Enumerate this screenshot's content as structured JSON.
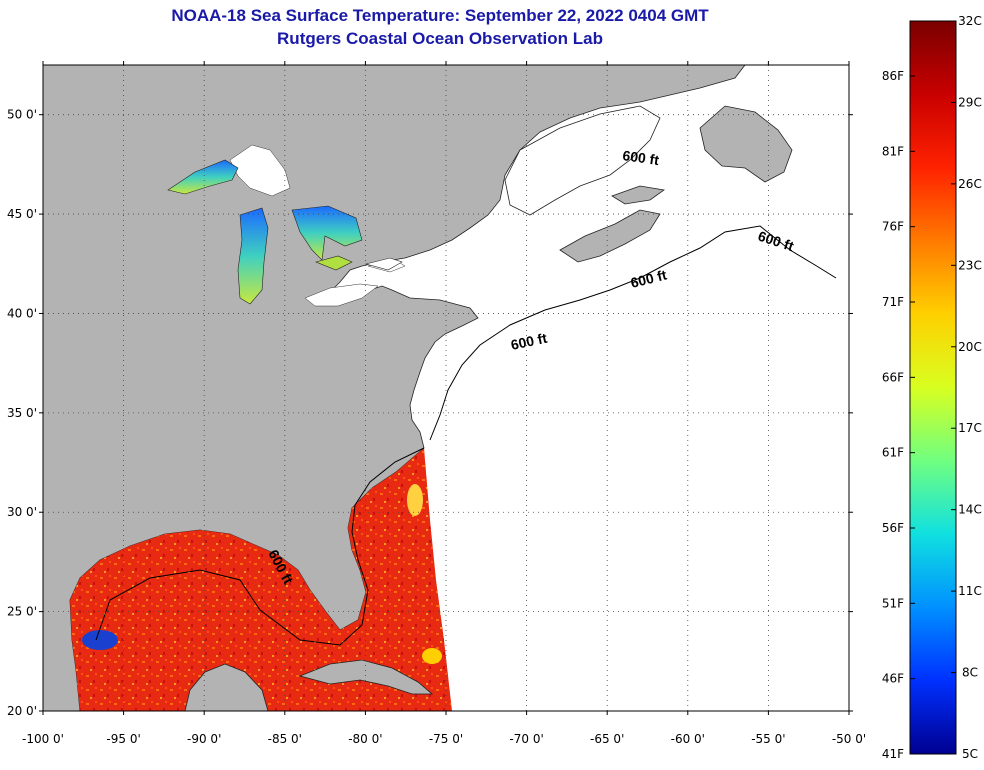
{
  "title": {
    "line1": "NOAA-18 Sea Surface Temperature:  September 22, 2022 0404 GMT",
    "line2": "Rutgers Coastal Ocean Observation Lab"
  },
  "map": {
    "lon_range": [
      -100,
      -50
    ],
    "lat_range": [
      20,
      52.5
    ],
    "lon_ticks": [
      "-100 0'",
      "-95 0'",
      "-90 0'",
      "-85 0'",
      "-80 0'",
      "-75 0'",
      "-70 0'",
      "-65 0'",
      "-60 0'",
      "-55 0'",
      "-50 0'"
    ],
    "lat_ticks": [
      "50 0'",
      "45 0'",
      "40 0'",
      "35 0'",
      "30 0'",
      "25 0'",
      "20 0'"
    ],
    "grid": "dotted",
    "land_color": "#b3b3b3",
    "no_data_color": "#ffffff",
    "contour_labels": [
      "600 ft",
      "600 ft",
      "600 ft",
      "600 ft",
      "600 ft"
    ]
  },
  "colorbar": {
    "fahrenheit_labels": [
      "86F",
      "81F",
      "76F",
      "71F",
      "66F",
      "61F",
      "56F",
      "51F",
      "46F",
      "41F"
    ],
    "celsius_labels": [
      "32C",
      "29C",
      "26C",
      "23C",
      "20C",
      "17C",
      "14C",
      "11C",
      "8C",
      "5C"
    ],
    "colors": [
      "#7a0000",
      "#c80000",
      "#ff2200",
      "#ff7a00",
      "#ffd000",
      "#d8ff20",
      "#70ff80",
      "#10e0e0",
      "#0090ff",
      "#0030ff",
      "#000090"
    ]
  }
}
